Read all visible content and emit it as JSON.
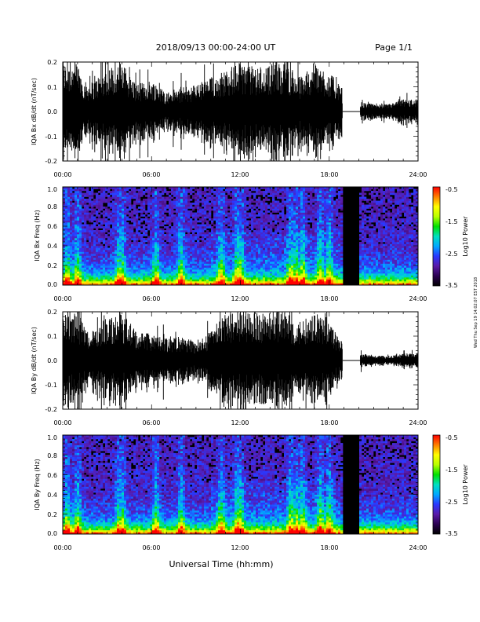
{
  "header": {
    "title": "2018/09/13  00:00-24:00 UT",
    "page": "Page 1/1"
  },
  "footer": {
    "xlabel": "Universal Time (hh:mm)",
    "side_note": "Wed Thu Sep 19 14:02:07 EST 2018"
  },
  "colors": {
    "trace": "#000000",
    "spectrogram_background": "#000000",
    "colormap": [
      "#000000",
      "#2a0050",
      "#5a1aa8",
      "#2a38ff",
      "#00a8ff",
      "#00e0c0",
      "#00e000",
      "#b8ff00",
      "#ffff00",
      "#ff8000",
      "#ff0000"
    ]
  },
  "chart_data": [
    {
      "type": "line",
      "ylabel": "IQA Bx dB/dt (nT/sec)",
      "xlim": [
        0,
        24
      ],
      "ylim": [
        -0.2,
        0.2
      ],
      "xticks": [
        "00:00",
        "06:00",
        "12:00",
        "18:00",
        "24:00"
      ],
      "yticks": [
        "0.2",
        "0.1",
        "0.0",
        "-0.1",
        "-0.2"
      ],
      "series": [
        {
          "envelope_hours": [
            0,
            0.5,
            1,
            1.5,
            2,
            3,
            4,
            5,
            6,
            7,
            8,
            9,
            10,
            11,
            12,
            13,
            14,
            15,
            16,
            17,
            18,
            18.7,
            19.9,
            20,
            21,
            22,
            23,
            24
          ],
          "envelope_amplitude": [
            0.2,
            0.2,
            0.2,
            0.12,
            0.12,
            0.18,
            0.2,
            0.11,
            0.13,
            0.08,
            0.1,
            0.11,
            0.14,
            0.17,
            0.2,
            0.18,
            0.19,
            0.2,
            0.14,
            0.2,
            0.16,
            0.11,
            0.0,
            0.04,
            0.03,
            0.03,
            0.05,
            0.05
          ],
          "gap_hours": [
            18.9,
            20.1
          ]
        }
      ]
    },
    {
      "type": "heatmap",
      "ylabel": "IQA Bx Freq (Hz)",
      "xlim": [
        0,
        24
      ],
      "ylim": [
        0,
        1.0
      ],
      "xticks": [
        "00:00",
        "06:00",
        "12:00",
        "18:00",
        "24:00"
      ],
      "yticks": [
        "1.0",
        "0.8",
        "0.6",
        "0.4",
        "0.2",
        "0.0"
      ],
      "gap_hours": [
        18.9,
        20.1
      ],
      "active_hours": [
        0.3,
        1.0,
        3.8,
        4.0,
        6.3,
        8.0,
        10.7,
        11.8,
        12.0,
        15.4,
        15.8,
        16.2,
        17.4,
        18.0
      ],
      "colorbar": {
        "label": "Log10 Power",
        "range": [
          -3.5,
          -0.5
        ],
        "ticks": [
          "-0.5",
          "-1.5",
          "-2.5",
          "-3.5"
        ]
      }
    },
    {
      "type": "line",
      "ylabel": "IQA By dB/dt (nT/sec)",
      "xlim": [
        0,
        24
      ],
      "ylim": [
        -0.2,
        0.2
      ],
      "xticks": [
        "00:00",
        "06:00",
        "12:00",
        "18:00",
        "24:00"
      ],
      "yticks": [
        "0.2",
        "0.1",
        "0.0",
        "-0.1",
        "-0.2"
      ],
      "series": [
        {
          "envelope_hours": [
            0,
            0.5,
            1,
            1.5,
            2,
            3,
            4,
            5,
            6,
            7,
            8,
            9,
            10,
            11,
            12,
            13,
            14,
            15,
            16,
            17,
            18,
            18.7,
            19.9,
            20,
            21,
            22,
            23,
            24
          ],
          "envelope_amplitude": [
            0.2,
            0.2,
            0.2,
            0.14,
            0.12,
            0.18,
            0.2,
            0.12,
            0.11,
            0.09,
            0.1,
            0.08,
            0.12,
            0.2,
            0.2,
            0.2,
            0.2,
            0.2,
            0.16,
            0.2,
            0.15,
            0.1,
            0.0,
            0.03,
            0.02,
            0.02,
            0.03,
            0.03
          ],
          "gap_hours": [
            18.9,
            20.1
          ]
        }
      ]
    },
    {
      "type": "heatmap",
      "ylabel": "IQA By Freq (Hz)",
      "xlim": [
        0,
        24
      ],
      "ylim": [
        0,
        1.0
      ],
      "xticks": [
        "00:00",
        "06:00",
        "12:00",
        "18:00",
        "24:00"
      ],
      "yticks": [
        "1.0",
        "0.8",
        "0.6",
        "0.4",
        "0.2",
        "0.0"
      ],
      "gap_hours": [
        18.9,
        20.1
      ],
      "active_hours": [
        0.3,
        1.0,
        3.8,
        4.0,
        6.3,
        8.0,
        10.7,
        11.8,
        12.0,
        15.4,
        15.8,
        16.2,
        17.4,
        18.0
      ],
      "colorbar": {
        "label": "Log10 Power",
        "range": [
          -3.5,
          -0.5
        ],
        "ticks": [
          "-0.5",
          "-1.5",
          "-2.5",
          "-3.5"
        ]
      }
    }
  ]
}
